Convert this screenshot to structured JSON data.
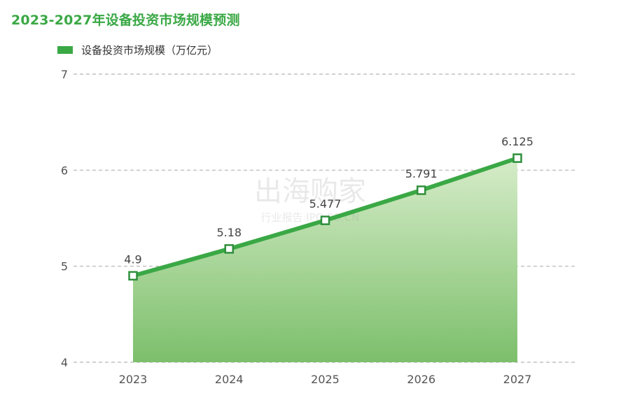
{
  "chart_data": {
    "type": "line",
    "title": "2023-2027年设备投资市场规模预测",
    "xlabel": "",
    "ylabel": "",
    "categories": [
      "2023",
      "2024",
      "2025",
      "2026",
      "2027"
    ],
    "series": [
      {
        "name": "设备投资市场规模（万亿元）",
        "values": [
          4.9,
          5.18,
          5.477,
          5.791,
          6.125
        ],
        "labels": [
          "4.9",
          "5.18",
          "5.477",
          "5.791",
          "6.125"
        ]
      }
    ],
    "ylim": [
      4,
      7
    ],
    "yticks": [
      "4",
      "5",
      "6",
      "7"
    ],
    "grid": true,
    "legend_position": "top-left",
    "area_fill": true,
    "colors": {
      "line": "#3aa845",
      "marker_stroke": "#2f8f3c",
      "area_top": "#d6ecc9",
      "area_bottom": "#7cbf6b",
      "grid": "#b3b3b3",
      "axis_text": "#555555"
    }
  },
  "watermark": {
    "main": "出海购家",
    "sub": "行业报告 IPO.PO.CN"
  }
}
